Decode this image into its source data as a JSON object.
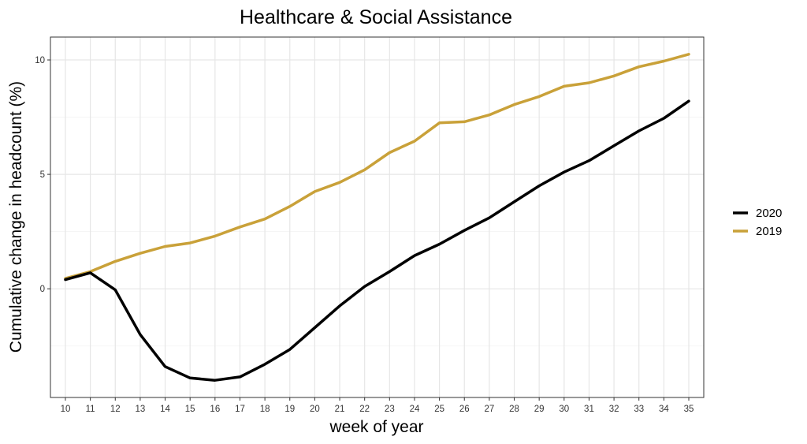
{
  "chart_data": {
    "type": "line",
    "title": "Healthcare & Social Assistance",
    "xlabel": "week of year",
    "ylabel": "Cumulative change in headcount (%)",
    "x": [
      10,
      11,
      12,
      13,
      14,
      15,
      16,
      17,
      18,
      19,
      20,
      21,
      22,
      23,
      24,
      25,
      26,
      27,
      28,
      29,
      30,
      31,
      32,
      33,
      34,
      35
    ],
    "xlim": [
      9.4,
      35.6
    ],
    "ylim": [
      -4.75,
      11.0
    ],
    "y_ticks": [
      0,
      5,
      10
    ],
    "y_tick_labels": [
      "0",
      "5",
      "10"
    ],
    "x_tick_labels": [
      "10",
      "11",
      "12",
      "13",
      "14",
      "15",
      "16",
      "17",
      "18",
      "19",
      "20",
      "21",
      "22",
      "23",
      "24",
      "25",
      "26",
      "27",
      "28",
      "29",
      "30",
      "31",
      "32",
      "33",
      "34",
      "35"
    ],
    "grid": true,
    "legend_position": "right",
    "series": [
      {
        "name": "2020",
        "color": "#000000",
        "values": [
          0.4,
          0.7,
          -0.05,
          -2.0,
          -3.4,
          -3.9,
          -4.0,
          -3.85,
          -3.3,
          -2.65,
          -1.7,
          -0.75,
          0.1,
          0.75,
          1.45,
          1.95,
          2.55,
          3.1,
          3.8,
          4.5,
          5.1,
          5.6,
          6.25,
          6.9,
          7.45,
          8.2
        ]
      },
      {
        "name": "2019",
        "color": "#C9A139",
        "values": [
          0.45,
          0.75,
          1.2,
          1.55,
          1.85,
          2.0,
          2.3,
          2.7,
          3.05,
          3.6,
          4.25,
          4.65,
          5.2,
          5.95,
          6.45,
          7.25,
          7.3,
          7.6,
          8.05,
          8.4,
          8.85,
          9.0,
          9.3,
          9.7,
          9.95,
          10.25
        ]
      }
    ]
  }
}
